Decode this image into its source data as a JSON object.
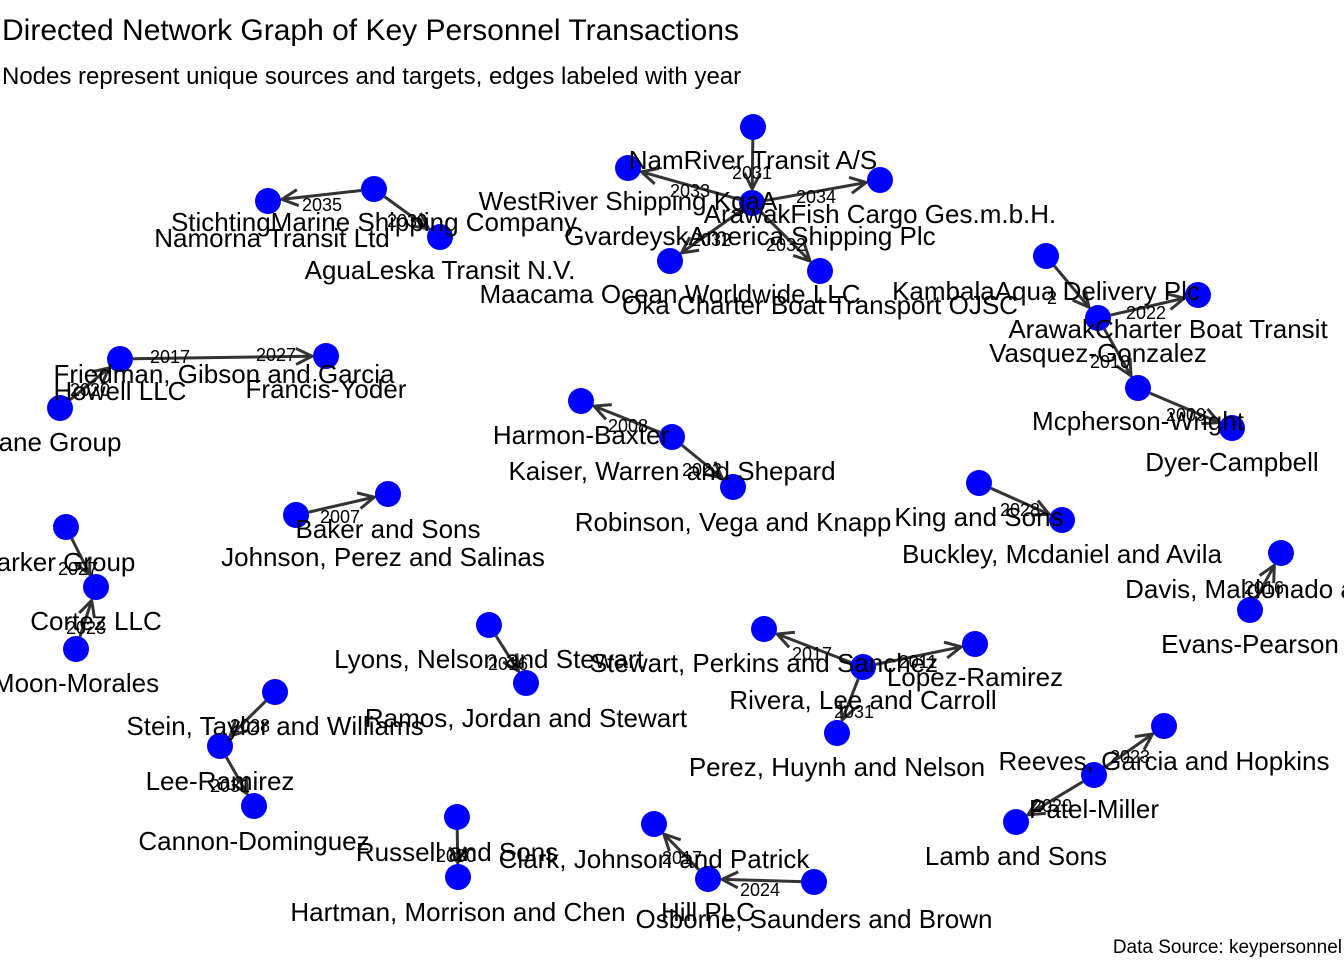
{
  "title": "Directed Network Graph of Key Personnel Transactions",
  "subtitle": "Nodes represent unique sources and targets, edges labeled with year",
  "caption": "Data Source: keypersonnel",
  "colors": {
    "node": "#0000ff",
    "edge": "#333333",
    "background": "#ffffff"
  },
  "graph": {
    "nodes": [
      {
        "id": "NamRiver Transit A/S"
      },
      {
        "id": "WestRiver Shipping KgaA"
      },
      {
        "id": "ArawakFish Cargo Ges.m.b.H."
      },
      {
        "id": "GvardeyskAmerica Shipping Plc"
      },
      {
        "id": "Maacama Ocean Worldwide LLC"
      },
      {
        "id": "Oka Charter Boat Transport OJSC"
      },
      {
        "id": "StichtingMarine Shipping Company"
      },
      {
        "id": "Namorna Transit Ltd"
      },
      {
        "id": "AguaLeska Transit N.V."
      },
      {
        "id": "KambalaAqua Delivery Plc"
      },
      {
        "id": "ArawakCharter Boat Transit"
      },
      {
        "id": "Vasquez-Gonzalez"
      },
      {
        "id": "Mcpherson-Wright"
      },
      {
        "id": "Dyer-Campbell"
      },
      {
        "id": "Friedman, Gibson and Garcia"
      },
      {
        "id": "Howell LLC"
      },
      {
        "id": "ane Group"
      },
      {
        "id": "Francis-Yoder"
      },
      {
        "id": "Harmon-Baxter"
      },
      {
        "id": "Kaiser, Warren and Shepard"
      },
      {
        "id": "Robinson, Vega and Knapp"
      },
      {
        "id": "King and Sons"
      },
      {
        "id": "Buckley, Mcdaniel and Avila"
      },
      {
        "id": "Baker and Sons"
      },
      {
        "id": "Johnson, Perez and Salinas"
      },
      {
        "id": "arker Group"
      },
      {
        "id": "Cortez LLC"
      },
      {
        "id": "Moon-Morales"
      },
      {
        "id": "Davis, Maldonado a"
      },
      {
        "id": "Evans-Pearson"
      },
      {
        "id": "Lyons, Nelson and Stewart"
      },
      {
        "id": "Ramos, Jordan and Stewart"
      },
      {
        "id": "Stewart, Perkins and Sanchez"
      },
      {
        "id": "Lopez-Ramirez"
      },
      {
        "id": "Rivera, Lee and Carroll"
      },
      {
        "id": "Perez, Huynh and Nelson"
      },
      {
        "id": "Stein, Taylor and Williams"
      },
      {
        "id": "Lee-Ramirez"
      },
      {
        "id": "Cannon-Dominguez"
      },
      {
        "id": "Reeves, Garcia and Hopkins"
      },
      {
        "id": "Patel-Miller"
      },
      {
        "id": "Lamb and Sons"
      },
      {
        "id": "Russell and Sons"
      },
      {
        "id": "Hartman, Morrison and Chen"
      },
      {
        "id": "Clark, Johnson and Patrick"
      },
      {
        "id": "Hill PLC"
      },
      {
        "id": "Osborne, Saunders and Brown"
      }
    ],
    "edges": [
      {
        "source": "NamRiver Transit A/S",
        "target": "ArawakFish Cargo Ges.m.b.H.",
        "year": "2031"
      },
      {
        "source": "ArawakFish Cargo Ges.m.b.H.",
        "target": "WestRiver Shipping KgaA",
        "year": "2033"
      },
      {
        "source": "ArawakFish Cargo Ges.m.b.H.",
        "target": "GvardeyskAmerica Shipping Plc",
        "year": "2034"
      },
      {
        "source": "ArawakFish Cargo Ges.m.b.H.",
        "target": "Maacama Ocean Worldwide LLC",
        "year": "2032"
      },
      {
        "source": "ArawakFish Cargo Ges.m.b.H.",
        "target": "Oka Charter Boat Transport OJSC",
        "year": "2032"
      },
      {
        "source": "Namorna Transit Ltd",
        "target": "StichtingMarine Shipping Company",
        "year": "2035"
      },
      {
        "source": "Namorna Transit Ltd",
        "target": "AguaLeska Transit N.V.",
        "year": "2030"
      },
      {
        "source": "KambalaAqua Delivery Plc",
        "target": "ArawakCharter Boat Transit",
        "year": "2"
      },
      {
        "source": "ArawakCharter Boat Transit",
        "target": "Vasquez-Gonzalez",
        "year": "2022"
      },
      {
        "source": "ArawakCharter Boat Transit",
        "target": "Mcpherson-Wright",
        "year": "2010"
      },
      {
        "source": "Mcpherson-Wright",
        "target": "Dyer-Campbell",
        "year": "2009"
      },
      {
        "source": "ane Group",
        "target": "Howell LLC",
        "year": "2020"
      },
      {
        "source": "Howell LLC",
        "target": "Friedman, Gibson and Garcia",
        "year": "2017"
      },
      {
        "source": "Friedman, Gibson and Garcia",
        "target": "Francis-Yoder",
        "year": "2027"
      },
      {
        "source": "Kaiser, Warren and Shepard",
        "target": "Harmon-Baxter",
        "year": "2008"
      },
      {
        "source": "Kaiser, Warren and Shepard",
        "target": "Robinson, Vega and Knapp",
        "year": "2022"
      },
      {
        "source": "King and Sons",
        "target": "Buckley, Mcdaniel and Avila",
        "year": "2028"
      },
      {
        "source": "Johnson, Perez and Salinas",
        "target": "Baker and Sons",
        "year": "2007"
      },
      {
        "source": "arker Group",
        "target": "Cortez LLC",
        "year": "2027"
      },
      {
        "source": "Moon-Morales",
        "target": "Cortez LLC",
        "year": "2023"
      },
      {
        "source": "Evans-Pearson",
        "target": "Davis, Maldonado a",
        "year": "2016"
      },
      {
        "source": "Lyons, Nelson and Stewart",
        "target": "Ramos, Jordan and Stewart",
        "year": "2016"
      },
      {
        "source": "Rivera, Lee and Carroll",
        "target": "Stewart, Perkins and Sanchez",
        "year": "2017"
      },
      {
        "source": "Rivera, Lee and Carroll",
        "target": "Lopez-Ramirez",
        "year": "2011"
      },
      {
        "source": "Rivera, Lee and Carroll",
        "target": "Perez, Huynh and Nelson",
        "year": "2031"
      },
      {
        "source": "Stein, Taylor and Williams",
        "target": "Lee-Ramirez",
        "year": "2028"
      },
      {
        "source": "Lee-Ramirez",
        "target": "Cannon-Dominguez",
        "year": "2031"
      },
      {
        "source": "Patel-Miller",
        "target": "Reeves, Garcia and Hopkins",
        "year": "2023"
      },
      {
        "source": "Patel-Miller",
        "target": "Lamb and Sons",
        "year": "2020"
      },
      {
        "source": "Russell and Sons",
        "target": "Hartman, Morrison and Chen",
        "year": "2030"
      },
      {
        "source": "Hill PLC",
        "target": "Clark, Johnson and Patrick",
        "year": "2017"
      },
      {
        "source": "Osborne, Saunders and Brown",
        "target": "Hill PLC",
        "year": "2024"
      }
    ]
  }
}
